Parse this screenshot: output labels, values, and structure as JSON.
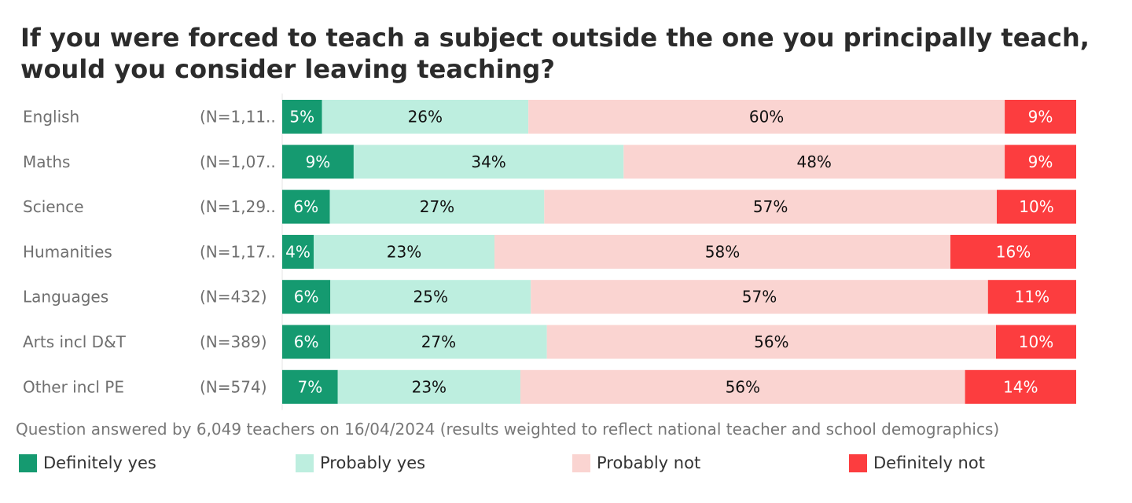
{
  "chart_data": {
    "type": "bar",
    "orientation": "horizontal",
    "stacked": true,
    "normalized_percent": true,
    "title": "If you were forced to teach a subject outside the one you principally teach, would you consider leaving teaching?",
    "categories": [
      "English",
      "Maths",
      "Science",
      "Humanities",
      "Languages",
      "Arts incl D&T",
      "Other incl PE"
    ],
    "sample_sizes": [
      "(N=1,11..",
      "(N=1,07..",
      "(N=1,29..",
      "(N=1,17..",
      "(N=432)",
      "(N=389)",
      "(N=574)"
    ],
    "series": [
      {
        "name": "Definitely yes",
        "color": "#159a70",
        "label_color": "#ffffff",
        "values": [
          5,
          9,
          6,
          4,
          6,
          6,
          7
        ]
      },
      {
        "name": "Probably yes",
        "color": "#bdeedf",
        "label_color": "#111111",
        "values": [
          26,
          34,
          27,
          23,
          25,
          27,
          23
        ]
      },
      {
        "name": "Probably not",
        "color": "#fad4d1",
        "label_color": "#111111",
        "values": [
          60,
          48,
          57,
          58,
          57,
          56,
          56
        ]
      },
      {
        "name": "Definitely not",
        "color": "#fc3d3f",
        "label_color": "#ffffff",
        "values": [
          9,
          9,
          10,
          16,
          11,
          10,
          14
        ]
      }
    ],
    "value_suffix": "%",
    "legend_position": "bottom",
    "grid": false
  },
  "footnote": "Question answered by 6,049 teachers on 16/04/2024 (results weighted to reflect national teacher and school demographics)"
}
